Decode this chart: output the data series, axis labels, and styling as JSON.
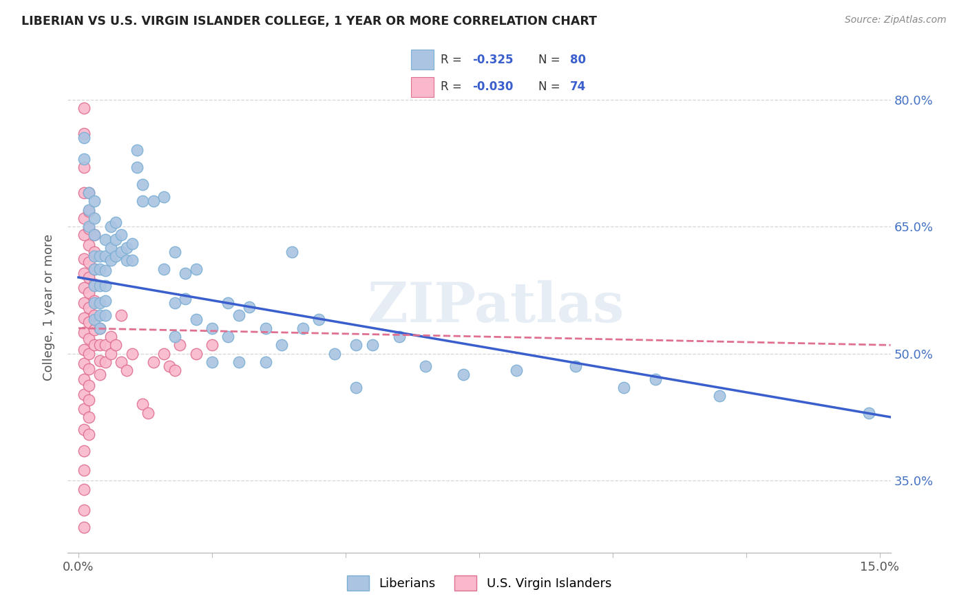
{
  "title": "LIBERIAN VS U.S. VIRGIN ISLANDER COLLEGE, 1 YEAR OR MORE CORRELATION CHART",
  "source": "Source: ZipAtlas.com",
  "ylabel": "College, 1 year or more",
  "y_ticks": [
    "80.0%",
    "65.0%",
    "50.0%",
    "35.0%"
  ],
  "y_tick_vals": [
    0.8,
    0.65,
    0.5,
    0.35
  ],
  "x_lim": [
    -0.002,
    0.152
  ],
  "y_lim": [
    0.265,
    0.845
  ],
  "watermark": "ZIPatlas",
  "blue_color": "#aac4e2",
  "blue_edge_color": "#7bafd4",
  "pink_color": "#f9b8cb",
  "pink_edge_color": "#e07090",
  "blue_line_color": "#3a5fcd",
  "pink_line_color": "#e07090",
  "blue_scatter": [
    [
      0.001,
      0.755
    ],
    [
      0.001,
      0.73
    ],
    [
      0.002,
      0.69
    ],
    [
      0.002,
      0.67
    ],
    [
      0.002,
      0.65
    ],
    [
      0.003,
      0.68
    ],
    [
      0.003,
      0.66
    ],
    [
      0.003,
      0.64
    ],
    [
      0.003,
      0.615
    ],
    [
      0.003,
      0.6
    ],
    [
      0.003,
      0.58
    ],
    [
      0.003,
      0.56
    ],
    [
      0.003,
      0.54
    ],
    [
      0.004,
      0.615
    ],
    [
      0.004,
      0.6
    ],
    [
      0.004,
      0.58
    ],
    [
      0.004,
      0.56
    ],
    [
      0.004,
      0.545
    ],
    [
      0.004,
      0.53
    ],
    [
      0.005,
      0.635
    ],
    [
      0.005,
      0.615
    ],
    [
      0.005,
      0.598
    ],
    [
      0.005,
      0.58
    ],
    [
      0.005,
      0.562
    ],
    [
      0.005,
      0.545
    ],
    [
      0.006,
      0.65
    ],
    [
      0.006,
      0.625
    ],
    [
      0.006,
      0.61
    ],
    [
      0.007,
      0.655
    ],
    [
      0.007,
      0.635
    ],
    [
      0.007,
      0.615
    ],
    [
      0.008,
      0.64
    ],
    [
      0.008,
      0.62
    ],
    [
      0.009,
      0.625
    ],
    [
      0.009,
      0.61
    ],
    [
      0.01,
      0.63
    ],
    [
      0.01,
      0.61
    ],
    [
      0.011,
      0.74
    ],
    [
      0.011,
      0.72
    ],
    [
      0.012,
      0.7
    ],
    [
      0.012,
      0.68
    ],
    [
      0.014,
      0.68
    ],
    [
      0.016,
      0.685
    ],
    [
      0.016,
      0.6
    ],
    [
      0.018,
      0.62
    ],
    [
      0.018,
      0.56
    ],
    [
      0.018,
      0.52
    ],
    [
      0.02,
      0.595
    ],
    [
      0.02,
      0.565
    ],
    [
      0.022,
      0.6
    ],
    [
      0.022,
      0.54
    ],
    [
      0.025,
      0.53
    ],
    [
      0.025,
      0.49
    ],
    [
      0.028,
      0.56
    ],
    [
      0.028,
      0.52
    ],
    [
      0.03,
      0.545
    ],
    [
      0.03,
      0.49
    ],
    [
      0.032,
      0.555
    ],
    [
      0.035,
      0.53
    ],
    [
      0.035,
      0.49
    ],
    [
      0.038,
      0.51
    ],
    [
      0.04,
      0.62
    ],
    [
      0.042,
      0.53
    ],
    [
      0.045,
      0.54
    ],
    [
      0.048,
      0.5
    ],
    [
      0.052,
      0.51
    ],
    [
      0.052,
      0.46
    ],
    [
      0.055,
      0.51
    ],
    [
      0.06,
      0.52
    ],
    [
      0.065,
      0.485
    ],
    [
      0.072,
      0.475
    ],
    [
      0.082,
      0.48
    ],
    [
      0.093,
      0.485
    ],
    [
      0.102,
      0.46
    ],
    [
      0.108,
      0.47
    ],
    [
      0.12,
      0.45
    ],
    [
      0.148,
      0.43
    ]
  ],
  "pink_scatter": [
    [
      0.001,
      0.79
    ],
    [
      0.001,
      0.76
    ],
    [
      0.001,
      0.72
    ],
    [
      0.001,
      0.69
    ],
    [
      0.001,
      0.66
    ],
    [
      0.001,
      0.64
    ],
    [
      0.001,
      0.612
    ],
    [
      0.001,
      0.595
    ],
    [
      0.001,
      0.578
    ],
    [
      0.001,
      0.56
    ],
    [
      0.001,
      0.542
    ],
    [
      0.001,
      0.525
    ],
    [
      0.001,
      0.505
    ],
    [
      0.001,
      0.488
    ],
    [
      0.001,
      0.47
    ],
    [
      0.001,
      0.452
    ],
    [
      0.001,
      0.435
    ],
    [
      0.001,
      0.41
    ],
    [
      0.001,
      0.385
    ],
    [
      0.001,
      0.362
    ],
    [
      0.001,
      0.34
    ],
    [
      0.001,
      0.315
    ],
    [
      0.001,
      0.295
    ],
    [
      0.002,
      0.69
    ],
    [
      0.002,
      0.668
    ],
    [
      0.002,
      0.648
    ],
    [
      0.002,
      0.628
    ],
    [
      0.002,
      0.608
    ],
    [
      0.002,
      0.59
    ],
    [
      0.002,
      0.572
    ],
    [
      0.002,
      0.554
    ],
    [
      0.002,
      0.537
    ],
    [
      0.002,
      0.518
    ],
    [
      0.002,
      0.5
    ],
    [
      0.002,
      0.482
    ],
    [
      0.002,
      0.462
    ],
    [
      0.002,
      0.445
    ],
    [
      0.002,
      0.425
    ],
    [
      0.002,
      0.405
    ],
    [
      0.003,
      0.64
    ],
    [
      0.003,
      0.62
    ],
    [
      0.003,
      0.6
    ],
    [
      0.003,
      0.582
    ],
    [
      0.003,
      0.562
    ],
    [
      0.003,
      0.545
    ],
    [
      0.003,
      0.528
    ],
    [
      0.003,
      0.51
    ],
    [
      0.004,
      0.53
    ],
    [
      0.004,
      0.51
    ],
    [
      0.004,
      0.492
    ],
    [
      0.004,
      0.475
    ],
    [
      0.005,
      0.51
    ],
    [
      0.005,
      0.49
    ],
    [
      0.006,
      0.52
    ],
    [
      0.006,
      0.5
    ],
    [
      0.007,
      0.51
    ],
    [
      0.008,
      0.545
    ],
    [
      0.008,
      0.49
    ],
    [
      0.009,
      0.48
    ],
    [
      0.01,
      0.5
    ],
    [
      0.012,
      0.44
    ],
    [
      0.013,
      0.43
    ],
    [
      0.014,
      0.49
    ],
    [
      0.016,
      0.5
    ],
    [
      0.017,
      0.485
    ],
    [
      0.018,
      0.48
    ],
    [
      0.019,
      0.51
    ],
    [
      0.022,
      0.5
    ],
    [
      0.025,
      0.51
    ]
  ],
  "blue_trend_x": [
    0.0,
    0.152
  ],
  "blue_trend_y": [
    0.59,
    0.425
  ],
  "pink_trend_x": [
    0.0,
    0.152
  ],
  "pink_trend_y": [
    0.53,
    0.51
  ]
}
